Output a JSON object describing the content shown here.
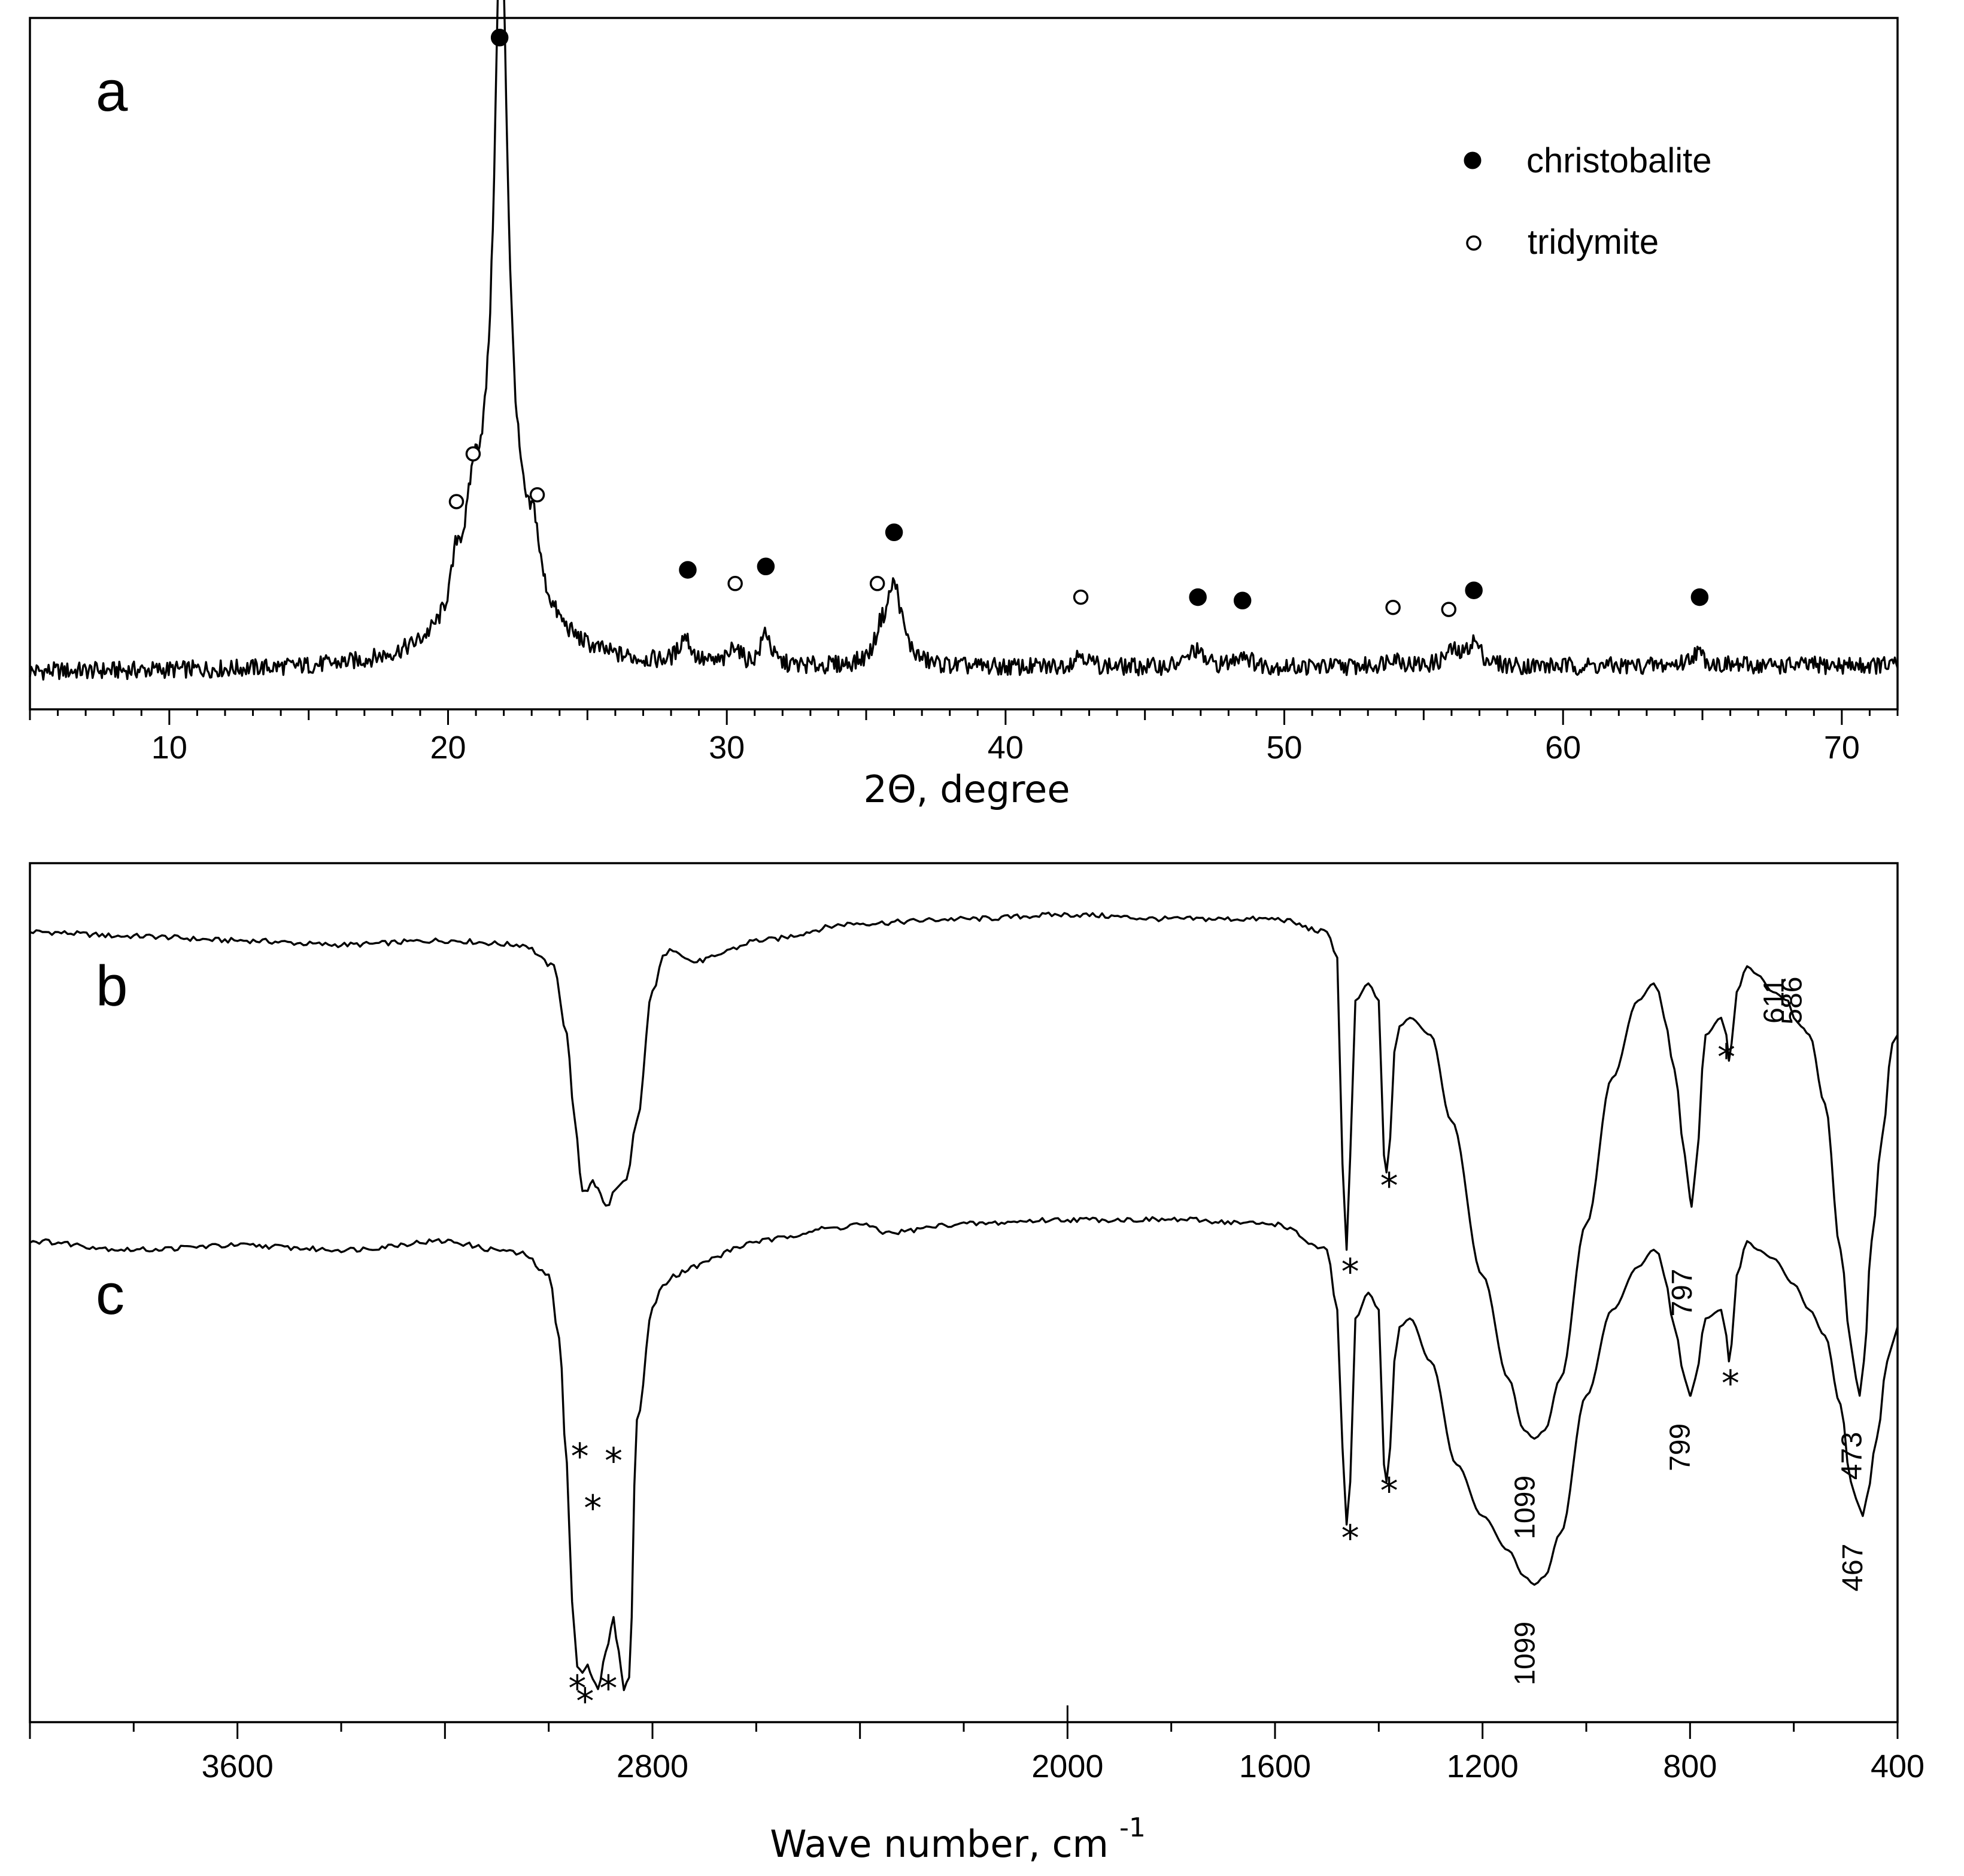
{
  "chart_data": [
    {
      "type": "line",
      "panel": "a",
      "title": "",
      "xlabel": "2Θ, degree",
      "ylabel": "",
      "xlim": [
        5,
        72
      ],
      "ylim": [
        0,
        100
      ],
      "xticks": [
        10,
        20,
        30,
        40,
        50,
        60,
        70
      ],
      "background": {
        "base": 5,
        "start": 5,
        "end": 72,
        "end_value": 6
      },
      "peaks": [
        {
          "x": 21.9,
          "h": 86,
          "w": 0.28
        },
        {
          "x": 21.9,
          "h": 24,
          "w": 1.2
        },
        {
          "x": 20.3,
          "h": 6,
          "w": 0.2
        },
        {
          "x": 20.9,
          "h": 10,
          "w": 0.3
        },
        {
          "x": 23.1,
          "h": 7,
          "w": 0.2
        },
        {
          "x": 28.5,
          "h": 4,
          "w": 0.25
        },
        {
          "x": 30.3,
          "h": 3,
          "w": 0.2
        },
        {
          "x": 31.4,
          "h": 5,
          "w": 0.2
        },
        {
          "x": 35.5,
          "h": 3,
          "w": 0.2
        },
        {
          "x": 36.0,
          "h": 12,
          "w": 0.35
        },
        {
          "x": 42.7,
          "h": 2,
          "w": 0.3
        },
        {
          "x": 46.8,
          "h": 2.5,
          "w": 0.3
        },
        {
          "x": 48.5,
          "h": 2,
          "w": 0.3
        },
        {
          "x": 53.9,
          "h": 1.5,
          "w": 0.3
        },
        {
          "x": 56.0,
          "h": 2,
          "w": 0.3
        },
        {
          "x": 56.8,
          "h": 3.5,
          "w": 0.3
        },
        {
          "x": 64.8,
          "h": 2,
          "w": 0.3
        }
      ],
      "legend": [
        {
          "label": "christobalite",
          "marker": "filled-circle"
        },
        {
          "label": "tridymite",
          "marker": "open-circle"
        }
      ],
      "markers": [
        {
          "phase": "christobalite",
          "x": 21.85,
          "y": 98
        },
        {
          "phase": "tridymite",
          "x": 20.3,
          "y": 30
        },
        {
          "phase": "tridymite",
          "x": 20.9,
          "y": 37
        },
        {
          "phase": "tridymite",
          "x": 23.2,
          "y": 31
        },
        {
          "phase": "christobalite",
          "x": 28.6,
          "y": 20
        },
        {
          "phase": "tridymite",
          "x": 30.3,
          "y": 18
        },
        {
          "phase": "christobalite",
          "x": 31.4,
          "y": 20.5
        },
        {
          "phase": "tridymite",
          "x": 35.4,
          "y": 18
        },
        {
          "phase": "christobalite",
          "x": 36.0,
          "y": 25.5
        },
        {
          "phase": "tridymite",
          "x": 42.7,
          "y": 16
        },
        {
          "phase": "christobalite",
          "x": 46.9,
          "y": 16
        },
        {
          "phase": "christobalite",
          "x": 48.5,
          "y": 15.5
        },
        {
          "phase": "tridymite",
          "x": 53.9,
          "y": 14.5
        },
        {
          "phase": "tridymite",
          "x": 55.9,
          "y": 14.2
        },
        {
          "phase": "christobalite",
          "x": 56.8,
          "y": 17
        },
        {
          "phase": "christobalite",
          "x": 64.9,
          "y": 16
        }
      ]
    },
    {
      "type": "line",
      "panel": "b,c",
      "title": "",
      "xlabel": "Wave number, cm",
      "xlabel_superscript": "-1",
      "ylabel": "",
      "xlim": [
        4000,
        400
      ],
      "ylim": [
        0,
        100
      ],
      "xticks": [
        3600,
        2800,
        2000,
        1600,
        1200,
        800,
        400
      ],
      "tick_positions": [
        3600,
        3200,
        2800,
        2400,
        2000,
        1600,
        1200,
        800,
        400
      ],
      "series": [
        {
          "name": "b",
          "x": [
            4000,
            3800,
            3600,
            3400,
            3200,
            3050,
            2990,
            2965,
            2950,
            2935,
            2925,
            2915,
            2905,
            2890,
            2870,
            2850,
            2830,
            2800,
            2780,
            2760,
            2720,
            2680,
            2650,
            2600,
            2400,
            2200,
            2000,
            1800,
            1600,
            1500,
            1480,
            1470,
            1462,
            1455,
            1445,
            1420,
            1400,
            1390,
            1385,
            1378,
            1370,
            1360,
            1340,
            1300,
            1260,
            1200,
            1150,
            1120,
            1100,
            1080,
            1050,
            1000,
            950,
            900,
            870,
            860,
            850,
            830,
            810,
            800,
            797,
            790,
            770,
            740,
            730,
            725,
            720,
            710,
            690,
            670,
            640,
            611,
            600,
            586,
            570,
            540,
            510,
            490,
            480,
            473,
            465,
            450,
            430,
            410,
            400
          ],
          "y": [
            92,
            91.5,
            91,
            90.5,
            91,
            90.5,
            88,
            80,
            70,
            62,
            62,
            63,
            62,
            60,
            62,
            63,
            70,
            85,
            89,
            90,
            88.5,
            89,
            90,
            91,
            93,
            93.5,
            94,
            93.5,
            93.5,
            92,
            89,
            65,
            55,
            66,
            84,
            86,
            84,
            66,
            64,
            68,
            78,
            81,
            82,
            80,
            70,
            52,
            40,
            34,
            33,
            34,
            40,
            58,
            75,
            84,
            86,
            85,
            82,
            76,
            66,
            61,
            60,
            64,
            80,
            82,
            80,
            77,
            79,
            85,
            88,
            87,
            85,
            84,
            82,
            81,
            80,
            72,
            55,
            44,
            40,
            38,
            42,
            56,
            68,
            79,
            80
          ]
        },
        {
          "name": "c",
          "x": [
            4000,
            3800,
            3600,
            3400,
            3200,
            3100,
            3050,
            3000,
            2980,
            2965,
            2955,
            2945,
            2935,
            2925,
            2915,
            2905,
            2890,
            2875,
            2865,
            2855,
            2845,
            2830,
            2800,
            2780,
            2760,
            2720,
            2680,
            2650,
            2600,
            2450,
            2400,
            2350,
            2200,
            2000,
            1800,
            1600,
            1500,
            1480,
            1470,
            1462,
            1455,
            1445,
            1420,
            1400,
            1390,
            1385,
            1378,
            1370,
            1360,
            1340,
            1300,
            1250,
            1200,
            1150,
            1120,
            1100,
            1080,
            1050,
            1000,
            950,
            900,
            870,
            860,
            850,
            830,
            810,
            800,
            799,
            790,
            770,
            740,
            730,
            725,
            720,
            710,
            690,
            670,
            640,
            600,
            570,
            540,
            510,
            490,
            480,
            467,
            460,
            440,
            420,
            410,
            400
          ],
          "y": [
            56,
            55,
            55.5,
            55,
            56,
            55,
            54.5,
            52,
            45,
            30,
            14,
            6.5,
            5.5,
            7,
            5,
            4,
            8,
            12,
            8,
            4,
            5,
            35,
            48,
            51,
            52,
            53,
            54,
            55,
            56,
            57.5,
            58,
            57,
            58,
            58.5,
            58.5,
            58,
            55,
            48,
            32,
            23,
            28,
            47,
            50,
            48,
            30,
            28,
            32,
            42,
            46,
            47,
            42,
            30,
            24,
            20,
            17,
            16,
            17,
            22,
            38,
            48,
            53,
            55,
            54.5,
            52,
            46,
            40,
            38,
            38,
            40,
            47,
            48,
            45,
            42,
            44,
            52,
            56,
            55,
            54,
            51,
            48,
            45,
            37,
            28,
            26,
            24,
            26,
            33,
            42,
            44,
            46
          ]
        }
      ],
      "annotations": [
        {
          "series": "b",
          "text": "797",
          "x": 797,
          "y": 50,
          "rotate": -90
        },
        {
          "series": "b",
          "text": "611",
          "x": 620,
          "y": 84,
          "rotate": -90
        },
        {
          "series": "b",
          "text": "586",
          "x": 585,
          "y": 84,
          "rotate": -90
        },
        {
          "series": "b",
          "text": "473",
          "x": 470,
          "y": 31,
          "rotate": -90
        },
        {
          "series": "b",
          "text": "1099",
          "x": 1100,
          "y": 25,
          "rotate": -90
        },
        {
          "series": "c",
          "text": "799",
          "x": 801,
          "y": 32,
          "rotate": -90
        },
        {
          "series": "c",
          "text": "1099",
          "x": 1100,
          "y": 8,
          "rotate": -90
        },
        {
          "series": "c",
          "text": "467",
          "x": 468,
          "y": 18,
          "rotate": -90
        }
      ],
      "star_markers": [
        {
          "series": "b",
          "x": 1455,
          "y": 51
        },
        {
          "series": "b",
          "x": 1380,
          "y": 61
        },
        {
          "series": "b",
          "x": 730,
          "y": 76
        },
        {
          "series": "b",
          "x": 2940,
          "y": 29.5
        },
        {
          "series": "b",
          "x": 2915,
          "y": 23.5
        },
        {
          "series": "b",
          "x": 2875,
          "y": 29
        },
        {
          "series": "c",
          "x": 1455,
          "y": 20
        },
        {
          "series": "c",
          "x": 1380,
          "y": 25.5
        },
        {
          "series": "c",
          "x": 722,
          "y": 38
        },
        {
          "series": "c",
          "x": 2945,
          "y": 2.5
        },
        {
          "series": "c",
          "x": 2930,
          "y": 1
        },
        {
          "series": "c",
          "x": 2885,
          "y": 2.5
        }
      ]
    }
  ]
}
